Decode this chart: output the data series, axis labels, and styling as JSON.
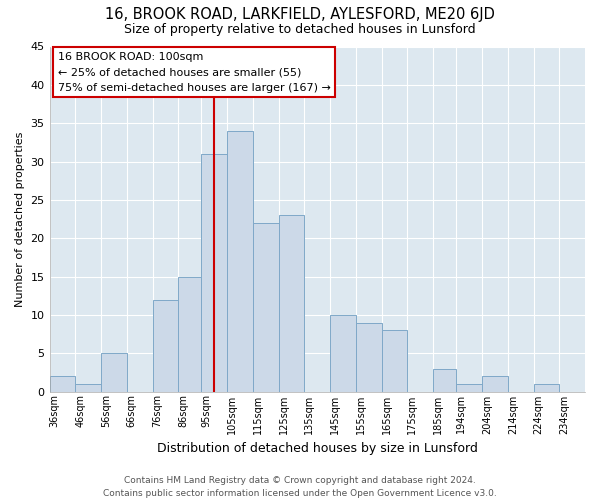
{
  "title": "16, BROOK ROAD, LARKFIELD, AYLESFORD, ME20 6JD",
  "subtitle": "Size of property relative to detached houses in Lunsford",
  "xlabel": "Distribution of detached houses by size in Lunsford",
  "ylabel": "Number of detached properties",
  "bar_edges": [
    36,
    46,
    56,
    66,
    76,
    86,
    95,
    105,
    115,
    125,
    135,
    145,
    155,
    165,
    175,
    185,
    194,
    204,
    214,
    224,
    234,
    244
  ],
  "bar_heights": [
    2,
    1,
    5,
    0,
    12,
    15,
    31,
    34,
    22,
    23,
    0,
    10,
    9,
    8,
    0,
    3,
    1,
    2,
    0,
    1,
    0
  ],
  "bar_color": "#ccd9e8",
  "bar_edgecolor": "#7fa8c8",
  "vline_x": 100,
  "vline_color": "#cc0000",
  "ylim": [
    0,
    45
  ],
  "yticks": [
    0,
    5,
    10,
    15,
    20,
    25,
    30,
    35,
    40,
    45
  ],
  "tick_labels": [
    "36sqm",
    "46sqm",
    "56sqm",
    "66sqm",
    "76sqm",
    "86sqm",
    "95sqm",
    "105sqm",
    "115sqm",
    "125sqm",
    "135sqm",
    "145sqm",
    "155sqm",
    "165sqm",
    "175sqm",
    "185sqm",
    "194sqm",
    "204sqm",
    "214sqm",
    "224sqm",
    "234sqm"
  ],
  "annotation_box_title": "16 BROOK ROAD: 100sqm",
  "annotation_line1": "← 25% of detached houses are smaller (55)",
  "annotation_line2": "75% of semi-detached houses are larger (167) →",
  "annotation_box_edgecolor": "#cc0000",
  "footer_line1": "Contains HM Land Registry data © Crown copyright and database right 2024.",
  "footer_line2": "Contains public sector information licensed under the Open Government Licence v3.0.",
  "fig_bg_color": "#ffffff",
  "plot_bg_color": "#dde8f0"
}
